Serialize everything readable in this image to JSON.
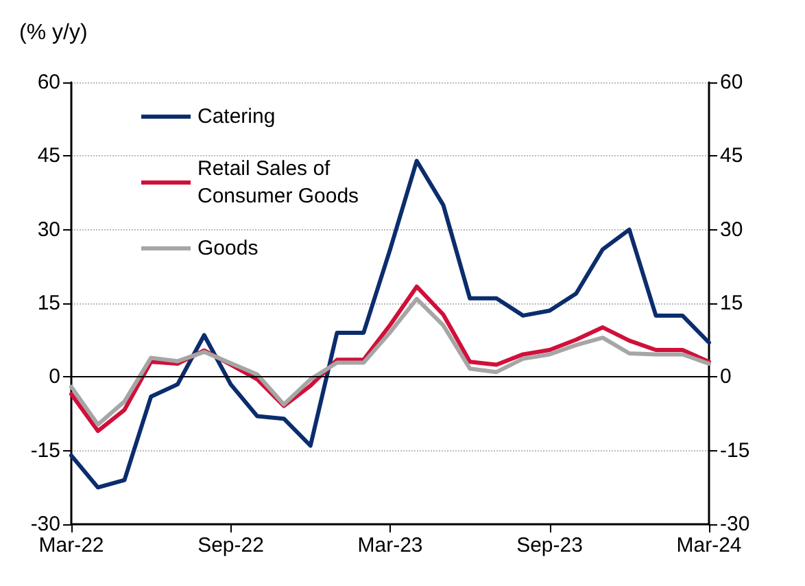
{
  "chart_data": {
    "type": "line",
    "ylabel": "(% y/y)",
    "categories": [
      "Mar-22",
      null,
      null,
      null,
      null,
      null,
      "Sep-22",
      null,
      null,
      null,
      null,
      null,
      "Mar-23",
      null,
      null,
      null,
      null,
      null,
      "Sep-23",
      null,
      null,
      null,
      null,
      null,
      "Mar-24"
    ],
    "series": [
      {
        "name": "Catering",
        "color": "#0b2d6e",
        "values": [
          -16,
          -22.5,
          -21,
          -4,
          -1.5,
          8.5,
          -1.5,
          -8,
          -8.5,
          -14,
          9,
          9,
          26,
          44,
          35,
          16,
          16,
          12.5,
          13.5,
          17,
          26,
          30,
          12.5,
          12.5,
          7
        ]
      },
      {
        "name": "Retail Sales of Consumer Goods",
        "color": "#d0103a",
        "values": [
          -3.5,
          -11,
          -6.7,
          3.1,
          2.7,
          5.4,
          2.5,
          -0.5,
          -5.9,
          -1.8,
          3.5,
          3.5,
          10.6,
          18.4,
          12.7,
          3.1,
          2.5,
          4.6,
          5.5,
          7.6,
          10.1,
          7.4,
          5.5,
          5.5,
          3.1
        ]
      },
      {
        "name": "Goods",
        "color": "#a6a6a6",
        "values": [
          -2,
          -9.7,
          -5,
          3.9,
          3.2,
          5.1,
          2.8,
          0.5,
          -5.6,
          -0.5,
          2.9,
          2.9,
          9.1,
          15.9,
          10.5,
          1.7,
          1,
          3.7,
          4.6,
          6.5,
          8,
          4.8,
          4.6,
          4.6,
          2.7
        ]
      }
    ],
    "ylim": [
      -30,
      60
    ],
    "yticks": [
      -30,
      -15,
      0,
      15,
      30,
      45,
      60
    ],
    "y2lim": [
      -30,
      60
    ],
    "y2ticks": [
      -30,
      -15,
      0,
      15,
      30,
      45,
      60
    ],
    "ref_lines": [
      {
        "axis": "y",
        "value": 0,
        "color": "#000000"
      }
    ],
    "grid": "y",
    "legend": "top left",
    "marker": "none",
    "line_style": "solid"
  }
}
